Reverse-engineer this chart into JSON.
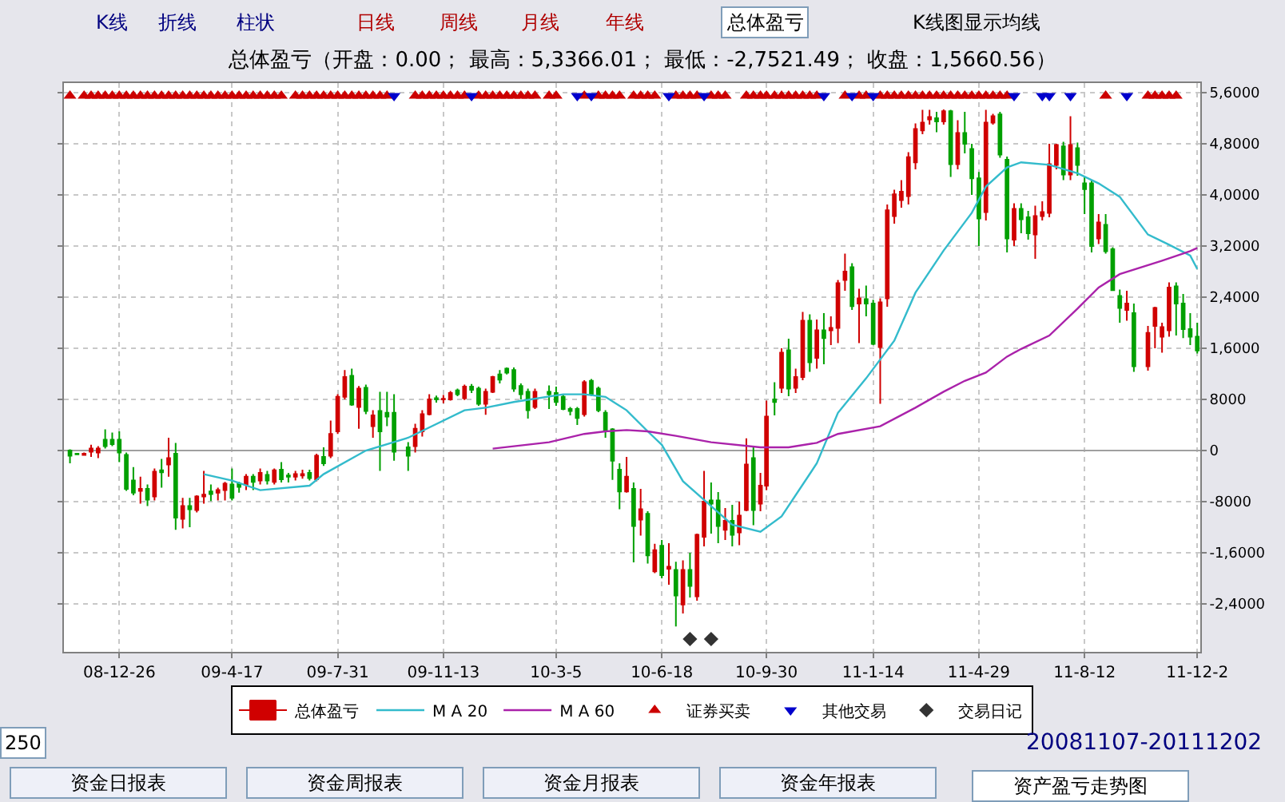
{
  "chart_data": {
    "type": "candlestick",
    "title": "总体盈亏（开盘：0.00； 最高：5,3366.01； 最低：-2,7521.49； 收盘：1,5660.56）",
    "annotations": [
      "K线",
      "折线",
      "柱状",
      "日线",
      "周线",
      "月线",
      "年线",
      "总体盈亏",
      "K线图显示均线",
      "250",
      "20081107-20111202",
      "资金日报表",
      "资金周报表",
      "资金月报表",
      "资金年报表",
      "资产盈亏走势图"
    ],
    "x": [
      "2008-11-07",
      "2008-11-14",
      "2008-11-21",
      "2008-11-28",
      "2008-12-05",
      "2008-12-12",
      "2008-12-19",
      "2008-12-26",
      "2009-01-02",
      "2009-01-09",
      "2009-01-16",
      "2009-01-23",
      "2009-01-30",
      "2009-02-06",
      "2009-02-13",
      "2009-02-20",
      "2009-02-27",
      "2009-03-06",
      "2009-03-13",
      "2009-03-20",
      "2009-03-27",
      "2009-04-03",
      "2009-04-10",
      "2009-04-17",
      "2009-04-24",
      "2009-05-01",
      "2009-05-08",
      "2009-05-15",
      "2009-05-22",
      "2009-05-29",
      "2009-06-05",
      "2009-06-12",
      "2009-06-19",
      "2009-06-26",
      "2009-07-03",
      "2009-07-10",
      "2009-07-17",
      "2009-07-24",
      "2009-07-31",
      "2009-08-07",
      "2009-08-14",
      "2009-08-21",
      "2009-08-28",
      "2009-09-04",
      "2009-09-11",
      "2009-09-18",
      "2009-09-25",
      "2009-10-09",
      "2009-10-16",
      "2009-10-23",
      "2009-10-30",
      "2009-11-06",
      "2009-11-13",
      "2009-11-20",
      "2009-11-27",
      "2009-12-04",
      "2009-12-11",
      "2009-12-18",
      "2009-12-25",
      "2010-01-01",
      "2010-01-08",
      "2010-01-15",
      "2010-01-22",
      "2010-01-29",
      "2010-02-05",
      "2010-02-12",
      "2010-02-26",
      "2010-03-05",
      "2010-03-12",
      "2010-03-19",
      "2010-03-26",
      "2010-04-02",
      "2010-04-09",
      "2010-04-16",
      "2010-04-23",
      "2010-04-30",
      "2010-05-07",
      "2010-05-14",
      "2010-05-21",
      "2010-05-28",
      "2010-06-04",
      "2010-06-11",
      "2010-06-18",
      "2010-06-25",
      "2010-07-02",
      "2010-07-09",
      "2010-07-16",
      "2010-07-23",
      "2010-07-30",
      "2010-08-06",
      "2010-08-13",
      "2010-08-20",
      "2010-08-27",
      "2010-09-03",
      "2010-09-10",
      "2010-09-17",
      "2010-09-24",
      "2010-09-30",
      "2010-10-08",
      "2010-10-15",
      "2010-10-22",
      "2010-10-29",
      "2010-11-05",
      "2010-11-12",
      "2010-11-19",
      "2010-11-26",
      "2010-12-03",
      "2010-12-10",
      "2010-12-17",
      "2010-12-24",
      "2010-12-31",
      "2011-01-07",
      "2011-01-14",
      "2011-01-21",
      "2011-01-28",
      "2011-02-04",
      "2011-02-11",
      "2011-02-18",
      "2011-02-25",
      "2011-03-04",
      "2011-03-11",
      "2011-03-18",
      "2011-03-25",
      "2011-04-01",
      "2011-04-08",
      "2011-04-15",
      "2011-04-22",
      "2011-04-29",
      "2011-05-06",
      "2011-05-13",
      "2011-05-20",
      "2011-05-27",
      "2011-06-03",
      "2011-06-10",
      "2011-06-17",
      "2011-06-24",
      "2011-07-01",
      "2011-07-08",
      "2011-07-15",
      "2011-07-22",
      "2011-07-29",
      "2011-08-05",
      "2011-08-12",
      "2011-08-19",
      "2011-08-26",
      "2011-09-02",
      "2011-09-09",
      "2011-09-16",
      "2011-09-23",
      "2011-09-30",
      "2011-10-14",
      "2011-10-21",
      "2011-10-28",
      "2011-11-04",
      "2011-11-11",
      "2011-11-18",
      "2011-11-25",
      "2011-12-02"
    ],
    "series": [
      {
        "name": "总体盈亏",
        "colors": [
          "#00a000",
          "#00a000",
          "#d00000",
          "#d00000",
          "#d00000",
          "#00a000",
          "#00a000",
          "#00a000",
          "#00a000",
          "#00a000",
          "#d00000",
          "#00a000",
          "#d00000",
          "#00a000",
          "#d00000",
          "#00a000",
          "#d00000",
          "#00a000",
          "#d00000",
          "#d00000",
          "#00a000",
          "#d00000",
          "#d00000",
          "#00a000",
          "#00a000",
          "#d00000",
          "#00a000",
          "#d00000",
          "#00a000",
          "#d00000",
          "#00a000",
          "#00a000",
          "#d00000",
          "#d00000",
          "#00a000",
          "#d00000",
          "#00a000",
          "#d00000",
          "#d00000",
          "#d00000",
          "#00a000",
          "#d00000",
          "#00a000",
          "#d00000",
          "#00a000",
          "#00a000",
          "#00a000",
          "#00a000",
          "#d00000",
          "#d00000",
          "#d00000",
          "#00a000",
          "#d00000",
          "#d00000",
          "#00a000",
          "#d00000",
          "#00a000",
          "#00a000",
          "#d00000",
          "#d00000",
          "#00a000",
          "#00a000",
          "#00a000",
          "#00a000",
          "#00a000",
          "#d00000",
          "#00a000",
          "#00a000",
          "#00a000",
          "#00a000",
          "#00a000",
          "#d00000",
          "#00a000",
          "#00a000",
          "#00a000",
          "#00a000",
          "#00a000",
          "#d00000",
          "#00a000",
          "#d00000",
          "#00a000",
          "#d00000",
          "#00a000",
          "#d00000",
          "#00a000",
          "#d00000",
          "#00a000",
          "#d00000",
          "#d00000",
          "#00a000",
          "#00a000",
          "#d00000",
          "#00a000",
          "#d00000",
          "#d00000",
          "#00a000",
          "#d00000",
          "#d00000",
          "#00a000",
          "#d00000",
          "#00a000",
          "#d00000",
          "#d00000",
          "#00a000",
          "#d00000",
          "#00a000",
          "#d00000",
          "#d00000",
          "#d00000",
          "#00a000",
          "#d00000",
          "#00a000",
          "#00a000",
          "#d00000",
          "#d00000",
          "#d00000",
          "#d00000",
          "#d00000",
          "#d00000",
          "#d00000",
          "#d00000",
          "#00a000",
          "#d00000",
          "#00a000",
          "#d00000",
          "#00a000",
          "#00a000",
          "#00a000",
          "#d00000",
          "#d00000",
          "#00a000",
          "#00a000",
          "#d00000",
          "#00a000",
          "#00a000",
          "#d00000",
          "#d00000",
          "#d00000",
          "#d00000",
          "#00a000",
          "#d00000",
          "#00a000",
          "#00a000",
          "#00a000",
          "#d00000",
          "#00a000",
          "#00a000",
          "#00a000",
          "#d00000",
          "#00a000",
          "#d00000",
          "#d00000",
          "#d00000",
          "#d00000",
          "#00a000",
          "#00a000",
          "#00a000",
          "#00a000"
        ],
        "ohlc": [
          [
            0,
            200,
            -2000,
            -800
          ],
          [
            -500,
            -400,
            -700,
            -600
          ],
          [
            -700,
            -300,
            -800,
            -500
          ],
          [
            -200,
            900,
            -1000,
            300
          ],
          [
            -300,
            700,
            -1200,
            300
          ],
          [
            1700,
            3300,
            300,
            700
          ],
          [
            1700,
            2800,
            700,
            1000
          ],
          [
            1700,
            3000,
            -1800,
            -300
          ],
          [
            -700,
            -300,
            -6300,
            -6000
          ],
          [
            -4700,
            -2600,
            -7000,
            -6600
          ],
          [
            -6300,
            -4100,
            -8300,
            -6000
          ],
          [
            -6000,
            -5300,
            -8700,
            -7700
          ],
          [
            -7200,
            -2800,
            -7800,
            -3300
          ],
          [
            -3100,
            -1300,
            -5800,
            -3400
          ],
          [
            -2200,
            2000,
            -4100,
            -1200
          ],
          [
            -500,
            1200,
            -12400,
            -10500
          ],
          [
            -10700,
            -7400,
            -12200,
            -8700
          ],
          [
            -8700,
            -7400,
            -12000,
            -9200
          ],
          [
            -9300,
            -7000,
            -9700,
            -7200
          ],
          [
            -7200,
            -3200,
            -8300,
            -6900
          ],
          [
            -6400,
            -5300,
            -7900,
            -6800
          ],
          [
            -6600,
            -5800,
            -7800,
            -6200
          ],
          [
            -6200,
            -4900,
            -7800,
            -5200
          ],
          [
            -5300,
            -2800,
            -7800,
            -7400
          ],
          [
            -5200,
            -4900,
            -6600,
            -5700
          ],
          [
            -5300,
            -3700,
            -6200,
            -4100
          ],
          [
            -4100,
            -3700,
            -6200,
            -4900
          ],
          [
            -4700,
            -2800,
            -5300,
            -3500
          ],
          [
            -3800,
            -3200,
            -5300,
            -4700
          ],
          [
            -4900,
            -2800,
            -5300,
            -3100
          ],
          [
            -3000,
            -1800,
            -5000,
            -4500
          ],
          [
            -3900,
            -3500,
            -5000,
            -4100
          ],
          [
            -4100,
            -3200,
            -4700,
            -3700
          ],
          [
            -3900,
            -3000,
            -4400,
            -3700
          ],
          [
            -3500,
            -3000,
            -4700,
            -4300
          ],
          [
            -4500,
            -500,
            -4800,
            -800
          ],
          [
            -1000,
            500,
            -2400,
            -2000
          ],
          [
            -800,
            4700,
            -1200,
            2600
          ],
          [
            3000,
            8800,
            2600,
            8400
          ],
          [
            8400,
            12600,
            8000,
            11500
          ],
          [
            11700,
            12800,
            7000,
            7200
          ],
          [
            6800,
            10100,
            3400,
            9700
          ],
          [
            9800,
            10300,
            5700,
            6200
          ],
          [
            3800,
            6300,
            2000,
            5500
          ],
          [
            6200,
            9200,
            -3200,
            3000
          ],
          [
            5900,
            9200,
            3800,
            5300
          ],
          [
            5900,
            8800,
            -1600,
            -200
          ],
          [
            500,
            1300,
            -3200,
            -800
          ],
          [
            700,
            4200,
            -300,
            3400
          ],
          [
            3000,
            6300,
            2200,
            5700
          ],
          [
            5700,
            8800,
            5500,
            8000
          ],
          [
            8200,
            8600,
            7500,
            8000
          ],
          [
            8000,
            8700,
            7400,
            8100
          ],
          [
            8000,
            9300,
            7800,
            9000
          ],
          [
            9400,
            9700,
            8500,
            8800
          ],
          [
            8200,
            10300,
            7900,
            10000
          ],
          [
            10000,
            10400,
            9000,
            9500
          ],
          [
            9700,
            10000,
            7000,
            7300
          ],
          [
            7300,
            9700,
            5600,
            9200
          ],
          [
            9200,
            11700,
            9000,
            11500
          ],
          [
            11900,
            12600,
            10500,
            11100
          ],
          [
            12800,
            13000,
            11900,
            12200
          ],
          [
            12600,
            13000,
            9200,
            9700
          ],
          [
            10100,
            10500,
            8000,
            8800
          ],
          [
            9200,
            9700,
            5000,
            6300
          ],
          [
            6800,
            9700,
            6500,
            9200
          ],
          [
            9200,
            10200,
            6500,
            8800
          ],
          [
            9000,
            10000,
            7000,
            7600
          ],
          [
            8400,
            8800,
            6300,
            6500
          ],
          [
            6500,
            6800,
            5500,
            6200
          ],
          [
            6500,
            6800,
            4000,
            5100
          ],
          [
            5700,
            11000,
            5300,
            10700
          ],
          [
            10900,
            11200,
            8500,
            8800
          ],
          [
            9700,
            10000,
            6000,
            6300
          ],
          [
            5900,
            6300,
            2000,
            3000
          ],
          [
            3300,
            3500,
            -4600,
            -1600
          ],
          [
            -3000,
            -2000,
            -9200,
            -6400
          ],
          [
            -6400,
            -1000,
            -6600,
            -4100
          ],
          [
            -6000,
            -5000,
            -17500,
            -11800
          ],
          [
            -10800,
            -6000,
            -13300,
            -9200
          ],
          [
            -9900,
            -9500,
            -17700,
            -16400
          ],
          [
            -18900,
            -14600,
            -19200,
            -15600
          ],
          [
            -14900,
            -14000,
            -20000,
            -19500
          ],
          [
            -18500,
            -14500,
            -21000,
            -18200
          ],
          [
            -18700,
            -17400,
            -27521.49,
            -22700
          ],
          [
            -24100,
            -17200,
            -25500,
            -18700
          ],
          [
            -18700,
            -16000,
            -23000,
            -21200
          ],
          [
            -22800,
            -13000,
            -23500,
            -13200
          ],
          [
            -13500,
            -3200,
            -15000,
            -8000
          ],
          [
            -7800,
            -5000,
            -13000,
            -8300
          ],
          [
            -7800,
            -6500,
            -14500,
            -11800
          ],
          [
            -12400,
            -9000,
            -14000,
            -11000
          ],
          [
            -11000,
            -8500,
            -15000,
            -13200
          ],
          [
            -12800,
            -8000,
            -14800,
            -10200
          ],
          [
            -9300,
            1900,
            -9500,
            -2200
          ],
          [
            -1200,
            700,
            -11700,
            -9300
          ],
          [
            -8300,
            -3500,
            -9500,
            -5500
          ],
          [
            -5500,
            7800,
            -6200,
            5300
          ],
          [
            8000,
            10700,
            5500,
            7600
          ],
          [
            9800,
            16000,
            9000,
            15300
          ],
          [
            15700,
            17500,
            8500,
            9700
          ],
          [
            9800,
            12800,
            9000,
            11500
          ],
          [
            11500,
            21700,
            11000,
            20300
          ],
          [
            20300,
            21300,
            12300,
            13800
          ],
          [
            14500,
            20500,
            12800,
            18800
          ],
          [
            18800,
            21500,
            13500,
            17600
          ],
          [
            18800,
            21000,
            16500,
            19200
          ],
          [
            19200,
            26700,
            16800,
            26200
          ],
          [
            26700,
            30800,
            25000,
            28000
          ],
          [
            28700,
            29300,
            22000,
            22600
          ],
          [
            23000,
            25300,
            16800,
            23800
          ],
          [
            23700,
            25800,
            21000,
            23000
          ],
          [
            23000,
            23600,
            16500,
            16700
          ],
          [
            16200,
            23800,
            7300,
            23200
          ],
          [
            23800,
            38500,
            22500,
            37600
          ],
          [
            36700,
            40800,
            35500,
            40100
          ],
          [
            39200,
            42300,
            38000,
            40500
          ],
          [
            39800,
            46700,
            38500,
            45900
          ],
          [
            45100,
            51200,
            44000,
            50300
          ],
          [
            50100,
            53300,
            49500,
            51300
          ],
          [
            51800,
            53300,
            51000,
            52200
          ],
          [
            52000,
            53000,
            49800,
            51500
          ],
          [
            51500,
            53366.01,
            51000,
            53100
          ],
          [
            53100,
            53300,
            42800,
            44800
          ],
          [
            44800,
            51700,
            44000,
            49700
          ],
          [
            49700,
            53000,
            46500,
            48000
          ],
          [
            47200,
            48000,
            40000,
            42600
          ],
          [
            42600,
            43600,
            32000,
            36300
          ],
          [
            37300,
            53300,
            36000,
            51300
          ],
          [
            51300,
            52700,
            51000,
            52300
          ],
          [
            52600,
            53000,
            45800,
            46300
          ],
          [
            45500,
            46000,
            31000,
            33200
          ],
          [
            33000,
            38700,
            32000,
            37800
          ],
          [
            37800,
            38700,
            34000,
            36200
          ],
          [
            36500,
            37500,
            33000,
            34000
          ],
          [
            33800,
            38300,
            30000,
            36700
          ],
          [
            36700,
            39000,
            36000,
            37300
          ],
          [
            37200,
            48000,
            36500,
            44800
          ],
          [
            44700,
            48000,
            44000,
            47800
          ],
          [
            47600,
            48300,
            42300,
            43200
          ],
          [
            43200,
            52300,
            42300,
            47800
          ],
          [
            47300,
            48200,
            43000,
            44700
          ],
          [
            41800,
            42800,
            37000,
            40900
          ],
          [
            41800,
            42300,
            31000,
            32000
          ],
          [
            33200,
            37000,
            32300,
            35700
          ],
          [
            35300,
            37000,
            30800,
            31200
          ],
          [
            31500,
            31800,
            25000,
            25100
          ],
          [
            24200,
            25200,
            20000,
            22300
          ],
          [
            22000,
            25000,
            20300,
            23000
          ],
          [
            21500,
            23000,
            12300,
            13200
          ],
          [
            13200,
            19500,
            12500,
            18400
          ],
          [
            19500,
            22500,
            16000,
            22300
          ],
          [
            17800,
            20000,
            15300,
            19300
          ],
          [
            18800,
            26300,
            17800,
            25500
          ],
          [
            25700,
            26300,
            18000,
            23000
          ],
          [
            23000,
            24500,
            17600,
            19000
          ],
          [
            19000,
            21500,
            16500,
            17800
          ],
          [
            17800,
            20000,
            15200,
            15660.56
          ]
        ]
      },
      {
        "type": "line",
        "name": "M A 20",
        "color": "#33bbcc",
        "x": [
          "2009-03-20",
          "2009-04-17",
          "2009-05-15",
          "2009-07-03",
          "2009-07-17",
          "2009-08-28",
          "2009-10-09",
          "2009-12-04",
          "2009-12-25",
          "2010-01-22",
          "2010-03-12",
          "2010-04-02",
          "2010-04-23",
          "2010-05-14",
          "2010-06-04",
          "2010-06-18",
          "2010-07-09",
          "2010-08-06",
          "2010-08-27",
          "2010-09-24",
          "2010-10-15",
          "2010-11-19",
          "2010-12-10",
          "2011-01-07",
          "2011-02-04",
          "2011-02-25",
          "2011-03-25",
          "2011-04-22",
          "2011-05-06",
          "2011-05-27",
          "2011-06-10",
          "2011-07-08",
          "2011-08-05",
          "2011-08-26",
          "2011-09-16",
          "2011-10-14",
          "2011-11-04",
          "2011-11-25",
          "2011-12-02"
        ],
        "values": [
          -3700,
          -4700,
          -6200,
          -5500,
          -3700,
          0,
          2000,
          6300,
          6700,
          7600,
          8800,
          8800,
          8400,
          6300,
          3000,
          900,
          -4800,
          -8700,
          -11600,
          -12700,
          -10300,
          -2000,
          5900,
          11300,
          17200,
          24700,
          31300,
          37200,
          41300,
          44300,
          45100,
          44700,
          43400,
          41800,
          39700,
          33800,
          32200,
          30500,
          28400
        ]
      },
      {
        "type": "line",
        "name": "M A 60",
        "color": "#aa22aa",
        "x": [
          "2010-01-01",
          "2010-02-26",
          "2010-04-02",
          "2010-04-23",
          "2010-05-14",
          "2010-06-04",
          "2010-07-02",
          "2010-08-06",
          "2010-09-24",
          "2010-10-22",
          "2010-11-19",
          "2010-12-10",
          "2011-01-21",
          "2011-02-25",
          "2011-03-25",
          "2011-04-15",
          "2011-05-06",
          "2011-05-27",
          "2011-06-10",
          "2011-07-08",
          "2011-08-05",
          "2011-08-26",
          "2011-09-16",
          "2011-10-28",
          "2011-11-25",
          "2011-12-02"
        ],
        "values": [
          300,
          1300,
          2600,
          3000,
          3200,
          3000,
          2300,
          1300,
          500,
          500,
          1200,
          2600,
          3800,
          6700,
          9200,
          10900,
          12200,
          14700,
          15900,
          18000,
          22200,
          25500,
          27600,
          29700,
          31200,
          31700
        ]
      },
      {
        "type": "scatter",
        "name": "证券买卖",
        "color": "#cc0000",
        "marker": "triangle",
        "x": [
          "2008-11-07",
          "2008-11-21",
          "2008-11-28",
          "2008-12-05",
          "2008-12-12",
          "2008-12-19",
          "2008-12-26",
          "2009-01-02",
          "2009-01-09",
          "2009-01-16",
          "2009-01-23",
          "2009-01-30",
          "2009-02-06",
          "2009-02-13",
          "2009-02-20",
          "2009-02-27",
          "2009-03-06",
          "2009-03-13",
          "2009-03-20",
          "2009-03-27",
          "2009-04-03",
          "2009-04-10",
          "2009-04-17",
          "2009-04-24",
          "2009-05-01",
          "2009-05-08",
          "2009-05-15",
          "2009-05-22",
          "2009-05-29",
          "2009-06-05",
          "2009-06-19",
          "2009-06-26",
          "2009-07-03",
          "2009-07-10",
          "2009-07-17",
          "2009-07-24",
          "2009-07-31",
          "2009-08-07",
          "2009-08-14",
          "2009-08-21",
          "2009-08-28",
          "2009-09-04",
          "2009-09-11",
          "2009-09-18",
          "2009-10-16",
          "2009-10-23",
          "2009-10-30",
          "2009-11-06",
          "2009-11-13",
          "2009-11-20",
          "2009-11-27",
          "2009-12-04",
          "2009-12-18",
          "2009-12-25",
          "2010-01-01",
          "2010-01-08",
          "2010-01-15",
          "2010-01-22",
          "2010-01-29",
          "2010-02-05",
          "2010-02-12",
          "2010-02-26",
          "2010-03-05",
          "2010-04-02",
          "2010-04-16",
          "2010-04-23",
          "2010-04-30",
          "2010-05-07",
          "2010-05-21",
          "2010-05-28",
          "2010-06-04",
          "2010-06-11",
          "2010-07-02",
          "2010-07-09",
          "2010-07-16",
          "2010-07-23",
          "2010-08-06",
          "2010-08-13",
          "2010-08-20",
          "2010-09-10",
          "2010-09-17",
          "2010-09-24",
          "2010-09-30",
          "2010-10-08",
          "2010-10-15",
          "2010-10-22",
          "2010-10-29",
          "2010-11-05",
          "2010-11-12",
          "2010-11-19",
          "2010-12-17",
          "2010-12-31",
          "2011-01-07",
          "2011-01-21",
          "2011-01-28",
          "2011-02-04",
          "2011-02-11",
          "2011-02-18",
          "2011-02-25",
          "2011-03-04",
          "2011-03-11",
          "2011-03-18",
          "2011-03-25",
          "2011-04-01",
          "2011-04-08",
          "2011-04-15",
          "2011-04-22",
          "2011-04-29",
          "2011-05-06",
          "2011-05-13",
          "2011-05-20",
          "2011-05-27",
          "2011-09-02",
          "2011-10-14",
          "2011-10-21",
          "2011-10-28",
          "2011-11-04",
          "2011-11-11"
        ],
        "values": [
          55500,
          55500,
          55500,
          55500,
          55500,
          55500,
          55500,
          55500,
          55500,
          55500,
          55500,
          55500,
          55500,
          55500,
          55500,
          55500,
          55500,
          55500,
          55500,
          55500,
          55500,
          55500,
          55500,
          55500,
          55500,
          55500,
          55500,
          55500,
          55500,
          55500,
          55500,
          55500,
          55500,
          55500,
          55500,
          55500,
          55500,
          55500,
          55500,
          55500,
          55500,
          55500,
          55500,
          55500,
          55500,
          55500,
          55500,
          55500,
          55500,
          55500,
          55500,
          55500,
          55500,
          55500,
          55500,
          55500,
          55500,
          55500,
          55500,
          55500,
          55500,
          55500,
          55500,
          55500,
          55500,
          55500,
          55500,
          55500,
          55500,
          55500,
          55500,
          55500,
          55500,
          55500,
          55500,
          55500,
          55500,
          55500,
          55500,
          55500,
          55500,
          55500,
          55500,
          55500,
          55500,
          55500,
          55500,
          55500,
          55500,
          55500,
          55500,
          55500,
          55500,
          55500,
          55500,
          55500,
          55500,
          55500,
          55500,
          55500,
          55500,
          55500,
          55500,
          55500,
          55500,
          55500,
          55500,
          55500,
          55500,
          55500,
          55500,
          55500,
          55500,
          55500,
          55500,
          55500,
          55500,
          55500
        ]
      },
      {
        "type": "scatter",
        "name": "其他交易",
        "color": "#0000cc",
        "marker": "triangle-down",
        "x": [
          "2009-09-25",
          "2009-12-11",
          "2010-03-26",
          "2010-04-09",
          "2010-06-25",
          "2010-07-30",
          "2010-11-26",
          "2010-12-24",
          "2011-01-14",
          "2011-06-03",
          "2011-07-01",
          "2011-07-08",
          "2011-07-29",
          "2011-09-23"
        ],
        "values": [
          55500,
          55500,
          55500,
          55500,
          55500,
          55500,
          55500,
          55500,
          55500,
          55500,
          55500,
          55500,
          55500,
          55500
        ]
      },
      {
        "type": "scatter",
        "name": "交易日记",
        "color": "#333333",
        "marker": "diamond",
        "x": [
          "2010-07-16",
          "2010-08-06"
        ],
        "values": [
          -29500,
          -29500
        ]
      }
    ],
    "xlim": [
      "2008-11-01",
      "2011-12-05"
    ],
    "xticks": [
      {
        "value": "2008-12-26",
        "label": "08-12-26"
      },
      {
        "value": "2009-04-17",
        "label": "09-4-17"
      },
      {
        "value": "2009-07-31",
        "label": "09-7-31"
      },
      {
        "value": "2009-11-13",
        "label": "09-11-13"
      },
      {
        "value": "2010-03-05",
        "label": "10-3-5"
      },
      {
        "value": "2010-06-18",
        "label": "10-6-18"
      },
      {
        "value": "2010-09-30",
        "label": "10-9-30"
      },
      {
        "value": "2011-01-14",
        "label": "11-1-14"
      },
      {
        "value": "2011-04-29",
        "label": "11-4-29"
      },
      {
        "value": "2011-08-12",
        "label": "11-8-12"
      },
      {
        "value": "2011-12-02",
        "label": "11-12-2"
      }
    ],
    "ylim": [
      -31500,
      57500
    ],
    "yticks": [
      {
        "value": -24000,
        "label": "-2,4000"
      },
      {
        "value": -16000,
        "label": "-1,6000"
      },
      -8000,
      0,
      8000,
      {
        "value": 16000,
        "label": "1,6000"
      },
      {
        "value": 24000,
        "label": "2,4000"
      },
      {
        "value": 32000,
        "label": "3,2000"
      },
      {
        "value": 40000,
        "label": "4,0000"
      },
      {
        "value": 48000,
        "label": "4,8000"
      },
      {
        "value": 56000,
        "label": "5,6000"
      }
    ],
    "grid": true,
    "legend": "bottom"
  }
}
